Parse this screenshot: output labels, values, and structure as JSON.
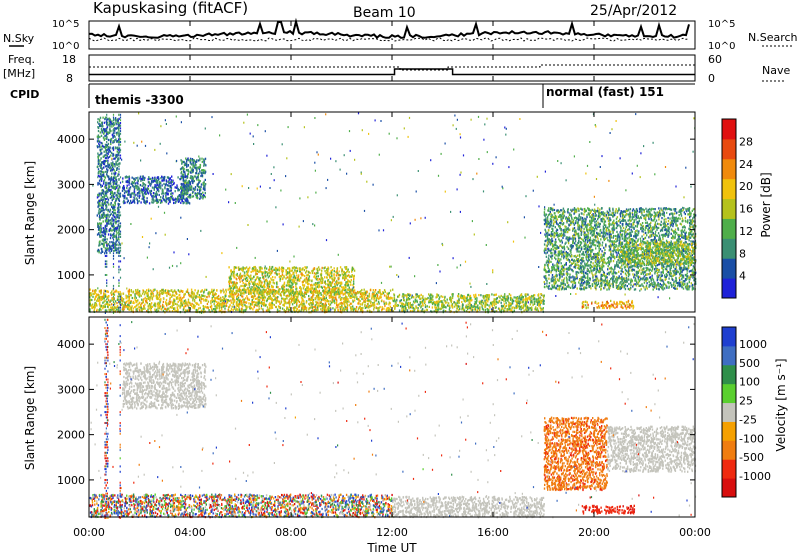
{
  "header": {
    "station": "Kapuskasing (fitACF)",
    "beam": "Beam 10",
    "date": "25/Apr/2012"
  },
  "top_panel": {
    "nsky_label": "N.Sky",
    "nsearch_label": "N.Search",
    "noise_ticks": [
      "10^5",
      "10^0"
    ],
    "freq_label": "Freq.",
    "freq_unit": "[MHz]",
    "freq_ticks": [
      "18",
      "8"
    ],
    "nave_label": "Nave",
    "nave_ticks": [
      "60",
      "0"
    ],
    "cpid_label": "CPID",
    "cpid_modes": [
      {
        "label": "themis -3300",
        "start_hour": 0
      },
      {
        "label": "normal (fast) 151",
        "start_hour": 18
      }
    ]
  },
  "colors": {
    "power_scale": [
      "#1f22d8",
      "#1a4fa6",
      "#3a8f73",
      "#4fae4a",
      "#b5c21c",
      "#f0c20c",
      "#f08a0c",
      "#e84a10",
      "#e01010"
    ],
    "velocity_scale": [
      "#1f3fd0",
      "#3f6ec2",
      "#2f8f4a",
      "#5acf2f",
      "#c4c4bc",
      "#f5a000",
      "#f07d10",
      "#ef2a10",
      "#d80e0e"
    ],
    "ground_scatter": "#c4c4bc"
  },
  "chart_data": [
    {
      "type": "heatmap",
      "title": "",
      "xlabel": "Time UT",
      "ylabel": "Slant Range [km]",
      "x_ticks": [
        "00:00",
        "04:00",
        "08:00",
        "12:00",
        "16:00",
        "20:00",
        "00:00"
      ],
      "x_range_hours": [
        0,
        24
      ],
      "y_ticks": [
        "1000",
        "2000",
        "3000",
        "4000"
      ],
      "y_range_km": [
        180,
        4600
      ],
      "colorbar_label": "Power [dB]",
      "colorbar_ticks": [
        "4",
        "8",
        "12",
        "16",
        "20",
        "24",
        "28"
      ],
      "colorbar_range": [
        0,
        32
      ],
      "scatter_regions": [
        {
          "t0": 0.0,
          "t1": 12.0,
          "r0": 200,
          "r1": 700,
          "level": 18,
          "note": "ground"
        },
        {
          "t0": 5.5,
          "t1": 10.5,
          "r0": 600,
          "r1": 1200,
          "level": 17
        },
        {
          "t0": 12.0,
          "t1": 18.0,
          "r0": 200,
          "r1": 600,
          "level": 15
        },
        {
          "t0": 0.3,
          "t1": 1.2,
          "r0": 1500,
          "r1": 4500,
          "level": 7
        },
        {
          "t0": 1.3,
          "t1": 4.0,
          "r0": 2600,
          "r1": 3200,
          "level": 5
        },
        {
          "t0": 3.6,
          "t1": 4.6,
          "r0": 2700,
          "r1": 3600,
          "level": 8
        },
        {
          "t0": 18.0,
          "t1": 24.0,
          "r0": 700,
          "r1": 2500,
          "level": 10
        },
        {
          "t0": 19.5,
          "t1": 21.6,
          "r0": 280,
          "r1": 450,
          "level": 22
        },
        {
          "t0": 21.0,
          "t1": 24.0,
          "r0": 1250,
          "r1": 1750,
          "level": 14
        }
      ]
    },
    {
      "type": "heatmap",
      "title": "",
      "xlabel": "Time UT",
      "ylabel": "Slant Range [km]",
      "x_ticks": [
        "00:00",
        "04:00",
        "08:00",
        "12:00",
        "16:00",
        "20:00",
        "00:00"
      ],
      "x_range_hours": [
        0,
        24
      ],
      "y_ticks": [
        "1000",
        "2000",
        "3000",
        "4000"
      ],
      "y_range_km": [
        180,
        4600
      ],
      "colorbar_label": "Velocity [m s⁻¹]",
      "colorbar_ticks": [
        "1000",
        "500",
        "100",
        "25",
        "-25",
        "-100",
        "-500",
        "-1000"
      ],
      "scatter_regions": [
        {
          "t0": 0.0,
          "t1": 12.0,
          "r0": 200,
          "r1": 700,
          "level": 0,
          "note": "mixed"
        },
        {
          "t0": 12.0,
          "t1": 18.0,
          "r0": 200,
          "r1": 650,
          "level": 0,
          "note": "ground"
        },
        {
          "t0": 1.3,
          "t1": 4.6,
          "r0": 2600,
          "r1": 3600,
          "level": 0,
          "note": "ground"
        },
        {
          "t0": 18.0,
          "t1": 20.5,
          "r0": 800,
          "r1": 2400,
          "level": -300
        },
        {
          "t0": 19.5,
          "t1": 21.6,
          "r0": 280,
          "r1": 450,
          "level": -400
        },
        {
          "t0": 20.5,
          "t1": 24.0,
          "r0": 1200,
          "r1": 2200,
          "level": 0,
          "note": "ground"
        }
      ]
    }
  ]
}
